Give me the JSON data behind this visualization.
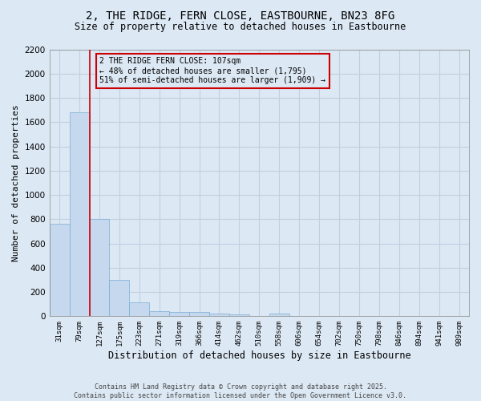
{
  "title_line1": "2, THE RIDGE, FERN CLOSE, EASTBOURNE, BN23 8FG",
  "title_line2": "Size of property relative to detached houses in Eastbourne",
  "xlabel": "Distribution of detached houses by size in Eastbourne",
  "ylabel": "Number of detached properties",
  "categories": [
    "31sqm",
    "79sqm",
    "127sqm",
    "175sqm",
    "223sqm",
    "271sqm",
    "319sqm",
    "366sqm",
    "414sqm",
    "462sqm",
    "510sqm",
    "558sqm",
    "606sqm",
    "654sqm",
    "702sqm",
    "750sqm",
    "798sqm",
    "846sqm",
    "894sqm",
    "941sqm",
    "989sqm"
  ],
  "values": [
    760,
    1680,
    800,
    300,
    115,
    43,
    35,
    35,
    20,
    15,
    0,
    20,
    0,
    0,
    0,
    0,
    0,
    0,
    0,
    0,
    0
  ],
  "bar_color": "#c5d8ee",
  "bar_edge_color": "#7aadd4",
  "grid_color": "#c0d0e0",
  "bg_color": "#dce8f4",
  "vline_x": 1.5,
  "vline_color": "#cc0000",
  "annotation_text": "2 THE RIDGE FERN CLOSE: 107sqm\n← 48% of detached houses are smaller (1,795)\n51% of semi-detached houses are larger (1,909) →",
  "annotation_box_color": "#cc0000",
  "footer_line1": "Contains HM Land Registry data © Crown copyright and database right 2025.",
  "footer_line2": "Contains public sector information licensed under the Open Government Licence v3.0.",
  "ylim": [
    0,
    2200
  ],
  "yticks": [
    0,
    200,
    400,
    600,
    800,
    1000,
    1200,
    1400,
    1600,
    1800,
    2000,
    2200
  ]
}
